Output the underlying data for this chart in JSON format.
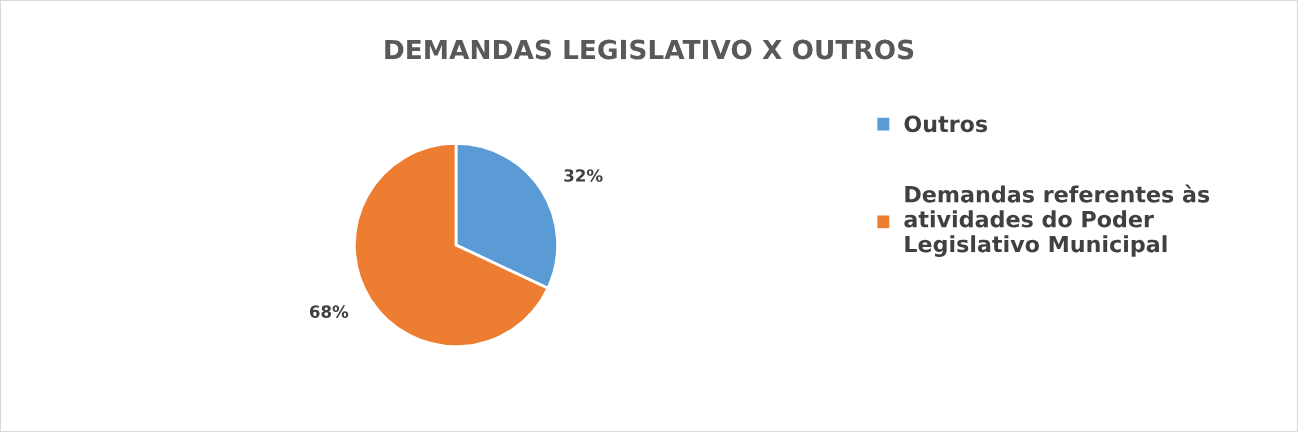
{
  "chart_data": {
    "type": "pie",
    "title": "DEMANDAS LEGISLATIVO X OUTROS",
    "categories": [
      "Outros",
      "Demandas referentes às atividades do Poder Legislativo Municipal"
    ],
    "values": [
      32,
      68
    ],
    "value_labels": [
      "32%",
      "68%"
    ],
    "colors": [
      "#5b9bd5",
      "#ed7d31"
    ],
    "legend": "right"
  }
}
